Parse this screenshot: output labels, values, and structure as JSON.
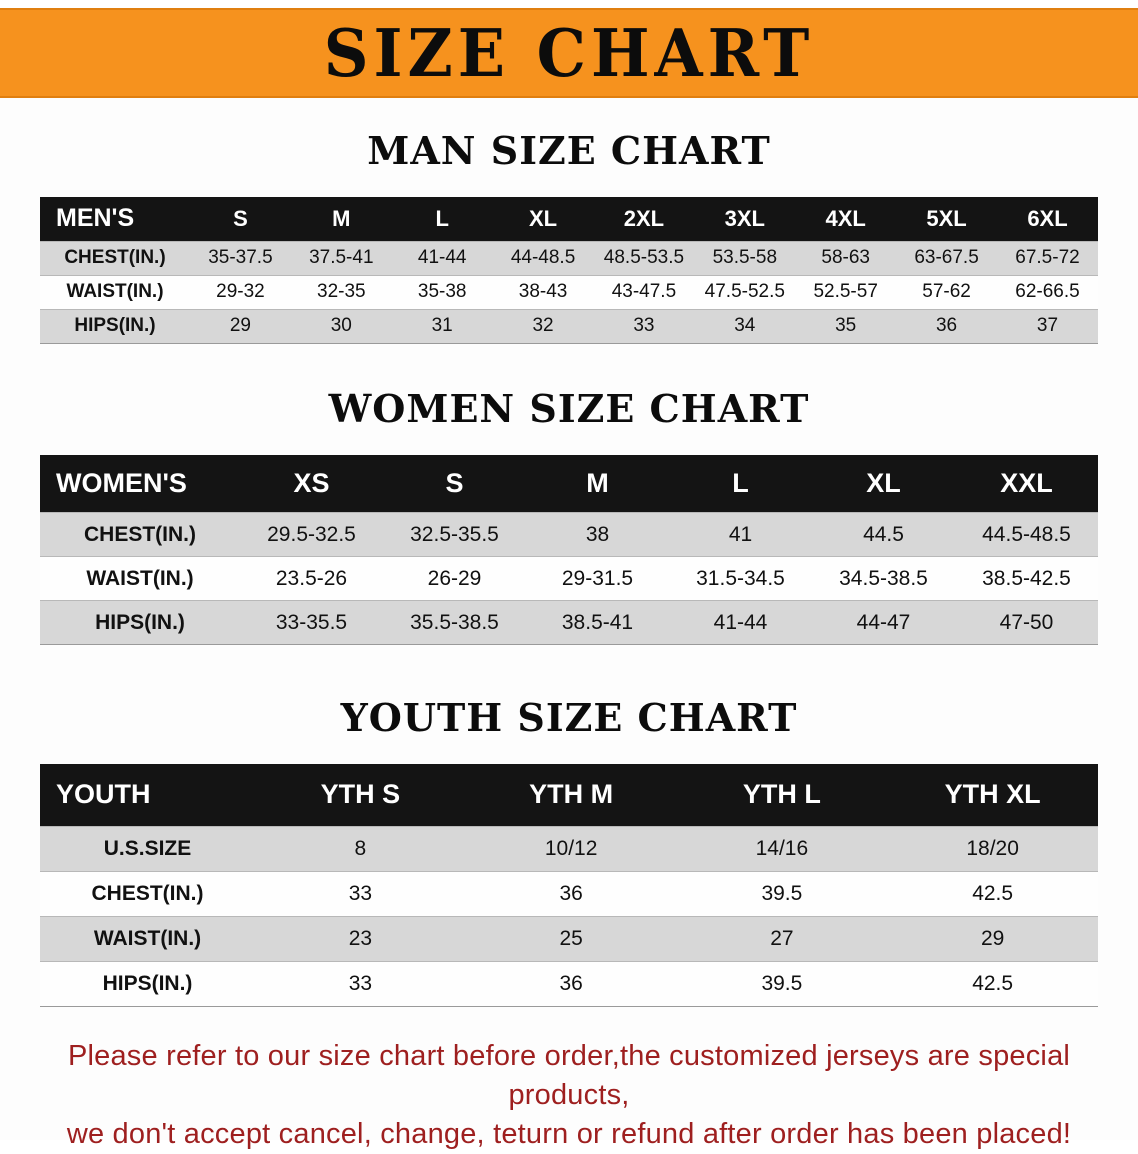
{
  "banner": {
    "title": "SIZE CHART"
  },
  "mens": {
    "section_title": "MAN SIZE CHART",
    "columns": [
      "MEN'S",
      "S",
      "M",
      "L",
      "XL",
      "2XL",
      "3XL",
      "4XL",
      "5XL",
      "6XL"
    ],
    "rows": [
      [
        "CHEST(IN.)",
        "35-37.5",
        "37.5-41",
        "41-44",
        "44-48.5",
        "48.5-53.5",
        "53.5-58",
        "58-63",
        "63-67.5",
        "67.5-72"
      ],
      [
        "WAIST(IN.)",
        "29-32",
        "32-35",
        "35-38",
        "38-43",
        "43-47.5",
        "47.5-52.5",
        "52.5-57",
        "57-62",
        "62-66.5"
      ],
      [
        "HIPS(IN.)",
        "29",
        "30",
        "31",
        "32",
        "33",
        "34",
        "35",
        "36",
        "37"
      ]
    ]
  },
  "womens": {
    "section_title": "WOMEN SIZE CHART",
    "columns": [
      "WOMEN'S",
      "XS",
      "S",
      "M",
      "L",
      "XL",
      "XXL"
    ],
    "rows": [
      [
        "CHEST(IN.)",
        "29.5-32.5",
        "32.5-35.5",
        "38",
        "41",
        "44.5",
        "44.5-48.5"
      ],
      [
        "WAIST(IN.)",
        "23.5-26",
        "26-29",
        "29-31.5",
        "31.5-34.5",
        "34.5-38.5",
        "38.5-42.5"
      ],
      [
        "HIPS(IN.)",
        "33-35.5",
        "35.5-38.5",
        "38.5-41",
        "41-44",
        "44-47",
        "47-50"
      ]
    ]
  },
  "youth": {
    "section_title": "YOUTH SIZE CHART",
    "columns": [
      "YOUTH",
      "YTH S",
      "YTH M",
      "YTH L",
      "YTH XL"
    ],
    "rows": [
      [
        "U.S.SIZE",
        "8",
        "10/12",
        "14/16",
        "18/20"
      ],
      [
        "CHEST(IN.)",
        "33",
        "36",
        "39.5",
        "42.5"
      ],
      [
        "WAIST(IN.)",
        "23",
        "25",
        "27",
        "29"
      ],
      [
        "HIPS(IN.)",
        "33",
        "36",
        "39.5",
        "42.5"
      ]
    ]
  },
  "footer": {
    "line1": "Please refer to our size chart before order,the customized jerseys are special products,",
    "line2": "we don't accept cancel, change, teturn or refund after order has been placed!"
  },
  "colors": {
    "accent-orange": "#f6921e",
    "header-black": "#141414",
    "stripe-gray": "#d7d7d7",
    "notice-red": "#9e1f1f"
  }
}
